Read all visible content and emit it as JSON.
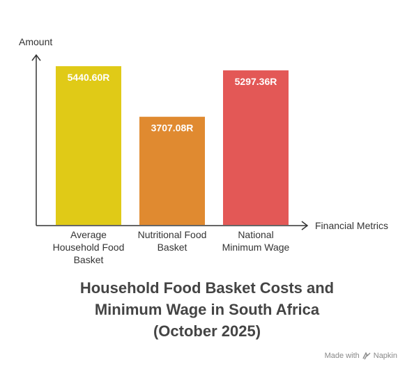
{
  "chart_data": {
    "type": "bar",
    "categories": [
      [
        "Average",
        "Household Food",
        "Basket"
      ],
      [
        "Nutritional Food",
        "Basket"
      ],
      [
        "National",
        "Minimum Wage"
      ]
    ],
    "values": [
      5440.6,
      3707.08,
      5297.36
    ],
    "value_labels": [
      "5440.60R",
      "3707.08R",
      "5297.36R"
    ],
    "colors": [
      "#E0CA17",
      "#E08A30",
      "#E35856"
    ],
    "ylim": [
      0,
      5800
    ],
    "xlabel": "Financial Metrics",
    "ylabel": "Amount",
    "title_lines": [
      "Household Food Basket Costs and",
      "Minimum Wage in South Africa",
      "(October 2025)"
    ]
  },
  "footer": {
    "made_with": "Made with",
    "brand": "Napkin",
    "brand_icon": "napkin-logo-icon"
  }
}
